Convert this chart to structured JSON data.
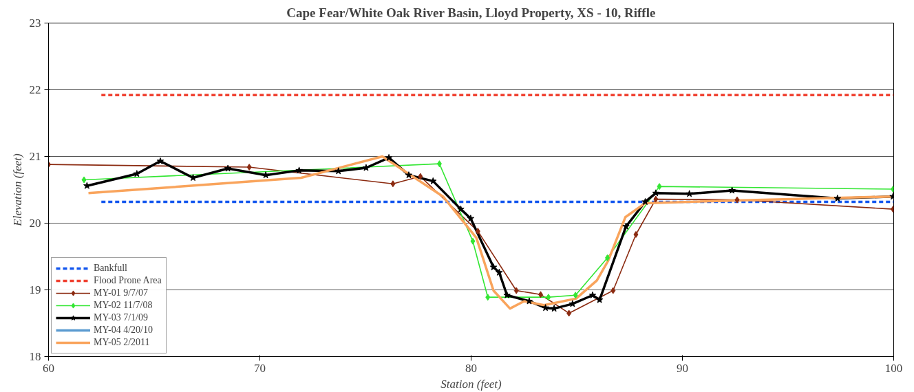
{
  "chart_data": {
    "type": "line",
    "title": "Cape Fear/White Oak River Basin, Lloyd Property, XS - 10, Riffle",
    "xlabel": "Station (feet)",
    "ylabel": "Elevation (feet)",
    "xlim": [
      60,
      100
    ],
    "xticks": [
      60,
      70,
      80,
      90,
      100
    ],
    "ylim": [
      18,
      23
    ],
    "yticks": [
      18,
      19,
      20,
      21,
      22,
      23
    ],
    "grid": "y",
    "legend": "bottom left",
    "series": [
      {
        "name": "Bankfull",
        "color": "#1155ee",
        "line_style": "dashed",
        "marker": "none",
        "x": [
          62.5,
          100
        ],
        "values": [
          20.32,
          20.32
        ]
      },
      {
        "name": "Flood Prone Area",
        "color": "#f04030",
        "line_style": "dashed",
        "marker": "none",
        "x": [
          62.5,
          100
        ],
        "values": [
          21.92,
          21.92
        ]
      },
      {
        "name": "MY-01 9/7/07",
        "color": "#8b2a10",
        "line_style": "solid",
        "marker": "diamond",
        "x": [
          60,
          69.5,
          76.3,
          77.6,
          80.32,
          82.14,
          83.29,
          84.63,
          86.72,
          87.8,
          88.74,
          92.59,
          99.97
        ],
        "values": [
          20.88,
          20.84,
          20.59,
          20.7,
          19.88,
          18.99,
          18.93,
          18.65,
          18.99,
          19.83,
          20.36,
          20.35,
          20.21
        ]
      },
      {
        "name": "MY-02 11/7/08",
        "color": "#33e633",
        "line_style": "solid",
        "marker": "diamond",
        "x": [
          61.68,
          78.5,
          80.08,
          80.79,
          83.66,
          84.94,
          86.45,
          88.91,
          99.97
        ],
        "values": [
          20.65,
          20.89,
          19.73,
          18.89,
          18.89,
          18.92,
          19.48,
          20.55,
          20.51
        ]
      },
      {
        "name": "MY-03 7/1/09",
        "color": "#000000",
        "line_style": "solid",
        "marker": "star",
        "x": [
          61.82,
          64.18,
          65.29,
          66.84,
          68.49,
          70.28,
          71.86,
          73.72,
          75.03,
          76.11,
          77.05,
          78.2,
          79.51,
          79.98,
          81.06,
          81.33,
          81.7,
          82.75,
          83.52,
          83.93,
          84.8,
          85.75,
          86.08,
          87.33,
          88.24,
          88.74,
          90.33,
          92.35,
          97.34,
          99.97
        ],
        "values": [
          20.56,
          20.74,
          20.93,
          20.68,
          20.82,
          20.72,
          20.79,
          20.78,
          20.83,
          20.98,
          20.72,
          20.63,
          20.21,
          20.07,
          19.34,
          19.26,
          18.92,
          18.83,
          18.73,
          18.72,
          18.79,
          18.92,
          18.85,
          19.95,
          20.32,
          20.45,
          20.44,
          20.49,
          20.37,
          20.4
        ]
      },
      {
        "name": "MY-04 4/20/10",
        "color": "#5a9ad0",
        "line_style": "solid",
        "marker": "none"
      },
      {
        "name": "MY-05 2/2011",
        "color": "#f9a45c",
        "line_style": "solid",
        "marker": "none",
        "x": [
          61.89,
          71.96,
          75.8,
          78.67,
          80.25,
          81.06,
          81.84,
          82.51,
          83.45,
          84.97,
          85.95,
          86.49,
          87.3,
          88.24,
          92.59,
          99.97
        ],
        "values": [
          20.45,
          20.68,
          21.0,
          20.4,
          19.78,
          18.99,
          18.72,
          18.83,
          18.77,
          18.87,
          19.14,
          19.44,
          20.09,
          20.3,
          20.34,
          20.4
        ]
      }
    ]
  }
}
